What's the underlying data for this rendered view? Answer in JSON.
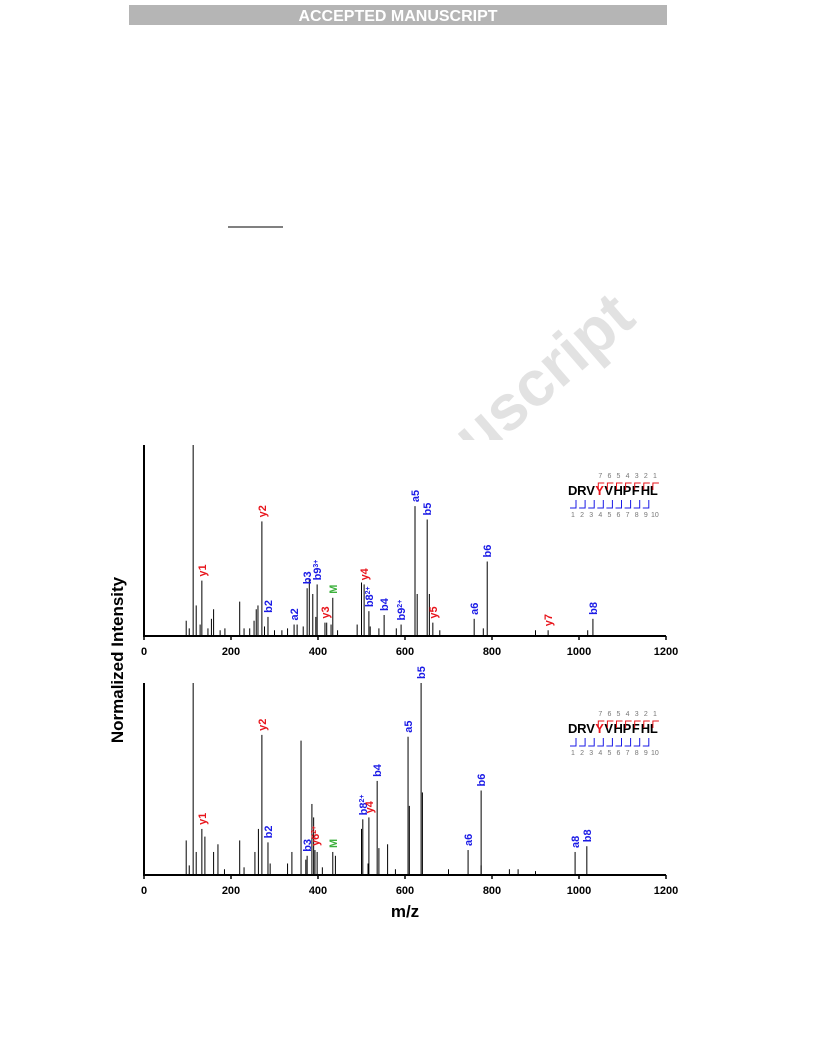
{
  "header": {
    "banner": "ACCEPTED MANUSCRIPT"
  },
  "watermark": "Accepted Manuscript",
  "figure": {
    "ylabel": "Normalized Intensity"
  },
  "chart_data": [
    {
      "type": "stem",
      "xlim": [
        0,
        1200
      ],
      "xticks": [
        0,
        200,
        400,
        600,
        800,
        1000,
        1200
      ],
      "ylim": [
        0,
        100
      ],
      "color": "#000000",
      "mz": [
        97,
        104,
        113,
        120,
        129,
        147,
        155,
        160,
        175,
        186,
        220,
        230,
        243,
        253,
        258,
        262,
        277,
        300,
        317,
        330,
        352,
        366,
        380,
        388,
        395,
        420,
        430,
        445,
        490,
        500,
        520,
        540,
        580,
        628,
        656,
        680,
        780,
        900,
        1020
      ],
      "values": [
        8,
        4,
        100,
        16,
        6,
        4,
        9,
        14,
        3,
        4,
        18,
        4,
        4,
        8,
        14,
        16,
        5,
        3,
        3,
        4,
        6,
        5,
        30,
        22,
        10,
        7,
        6,
        3,
        6,
        28,
        5,
        4,
        4,
        22,
        22,
        3,
        4,
        3,
        3
      ],
      "annotations": [
        {
          "label": "y1",
          "mz": 133,
          "intensity": 29,
          "color": "#e8141b"
        },
        {
          "label": "y2",
          "mz": 271,
          "intensity": 60,
          "color": "#e8141b"
        },
        {
          "label": "b2",
          "mz": 285,
          "intensity": 10,
          "color": "#1a1ae6"
        },
        {
          "label": "a2",
          "mz": 345,
          "intensity": 6,
          "color": "#1a1ae6"
        },
        {
          "label": "b3",
          "mz": 375,
          "intensity": 25,
          "color": "#1a1ae6"
        },
        {
          "label": "b9",
          "charge": "3+",
          "mz": 398,
          "intensity": 27,
          "color": "#1a1ae6"
        },
        {
          "label": "y3",
          "mz": 416,
          "intensity": 7,
          "color": "#e8141b"
        },
        {
          "label": "M",
          "mz": 434,
          "intensity": 20,
          "color": "#3cb03c"
        },
        {
          "label": "y4",
          "mz": 506,
          "intensity": 27,
          "color": "#e8141b"
        },
        {
          "label": "b8",
          "charge": "2+",
          "mz": 517,
          "intensity": 13,
          "color": "#1a1ae6"
        },
        {
          "label": "b4",
          "mz": 552,
          "intensity": 11,
          "color": "#1a1ae6"
        },
        {
          "label": "b9",
          "charge": "2+",
          "mz": 591,
          "intensity": 6,
          "color": "#1a1ae6"
        },
        {
          "label": "a5",
          "mz": 623,
          "intensity": 68,
          "color": "#1a1ae6"
        },
        {
          "label": "b5",
          "mz": 651,
          "intensity": 61,
          "color": "#1a1ae6"
        },
        {
          "label": "y5",
          "mz": 664,
          "intensity": 7,
          "color": "#e8141b"
        },
        {
          "label": "a6",
          "mz": 759,
          "intensity": 9,
          "color": "#1a1ae6"
        },
        {
          "label": "b6",
          "mz": 789,
          "intensity": 39,
          "color": "#1a1ae6"
        },
        {
          "label": "y7",
          "mz": 929,
          "intensity": 3,
          "color": "#e8141b"
        },
        {
          "label": "b8",
          "mz": 1032,
          "intensity": 9,
          "color": "#1a1ae6"
        }
      ],
      "sequence": {
        "letters": [
          "D",
          "R",
          "V",
          "Y",
          "V",
          "H",
          "P",
          "F",
          "H",
          "L"
        ],
        "highlight": 3,
        "highlight_color": "#e8141b",
        "y_numbers": [
          7,
          6,
          5,
          4,
          3,
          2,
          1
        ],
        "b_numbers": [
          1,
          2,
          3,
          4,
          5,
          6,
          7,
          8,
          9,
          10
        ]
      }
    },
    {
      "type": "stem",
      "xlim": [
        0,
        1200
      ],
      "xticks": [
        0,
        200,
        400,
        600,
        800,
        1000,
        1200
      ],
      "ylim": [
        0,
        100
      ],
      "color": "#000000",
      "xlabel": "m/z",
      "mz": [
        97,
        104,
        113,
        120,
        140,
        160,
        170,
        185,
        220,
        230,
        255,
        263,
        290,
        330,
        340,
        361,
        372,
        386,
        390,
        398,
        410,
        440,
        500,
        515,
        540,
        560,
        578,
        610,
        640,
        700,
        775,
        840,
        860,
        900
      ],
      "values": [
        18,
        5,
        100,
        12,
        20,
        12,
        16,
        3,
        18,
        4,
        12,
        24,
        6,
        6,
        12,
        70,
        8,
        37,
        30,
        12,
        4,
        10,
        24,
        6,
        14,
        16,
        3,
        36,
        43,
        3,
        5,
        3,
        3,
        2
      ],
      "annotations": [
        {
          "label": "y1",
          "mz": 133,
          "intensity": 24,
          "color": "#e8141b"
        },
        {
          "label": "y2",
          "mz": 271,
          "intensity": 73,
          "color": "#e8141b"
        },
        {
          "label": "b2",
          "mz": 285,
          "intensity": 17,
          "color": "#1a1ae6"
        },
        {
          "label": "b3",
          "mz": 375,
          "intensity": 10,
          "color": "#1a1ae6"
        },
        {
          "label": "y6",
          "charge": "2+",
          "mz": 393,
          "intensity": 13,
          "color": "#e8141b"
        },
        {
          "label": "M",
          "mz": 434,
          "intensity": 12,
          "color": "#3cb03c"
        },
        {
          "label": "b8",
          "charge": "2+",
          "mz": 503,
          "intensity": 29,
          "color": "#1a1ae6"
        },
        {
          "label": "y4",
          "mz": 517,
          "intensity": 30,
          "color": "#e8141b"
        },
        {
          "label": "b4",
          "mz": 536,
          "intensity": 49,
          "color": "#1a1ae6"
        },
        {
          "label": "a5",
          "mz": 607,
          "intensity": 72,
          "color": "#1a1ae6"
        },
        {
          "label": "b5",
          "mz": 637,
          "intensity": 100,
          "color": "#1a1ae6"
        },
        {
          "label": "a6",
          "mz": 745,
          "intensity": 13,
          "color": "#1a1ae6"
        },
        {
          "label": "b6",
          "mz": 775,
          "intensity": 44,
          "color": "#1a1ae6"
        },
        {
          "label": "a8",
          "mz": 991,
          "intensity": 12,
          "color": "#1a1ae6"
        },
        {
          "label": "b8",
          "mz": 1018,
          "intensity": 15,
          "color": "#1a1ae6"
        }
      ],
      "sequence": {
        "letters": [
          "D",
          "R",
          "V",
          "Y",
          "V",
          "H",
          "P",
          "F",
          "H",
          "L"
        ],
        "highlight": 3,
        "highlight_color": "#e8141b",
        "y_numbers": [
          7,
          6,
          5,
          4,
          3,
          2,
          1
        ],
        "b_numbers": [
          1,
          2,
          3,
          4,
          5,
          6,
          7,
          8,
          9,
          10
        ]
      }
    }
  ]
}
